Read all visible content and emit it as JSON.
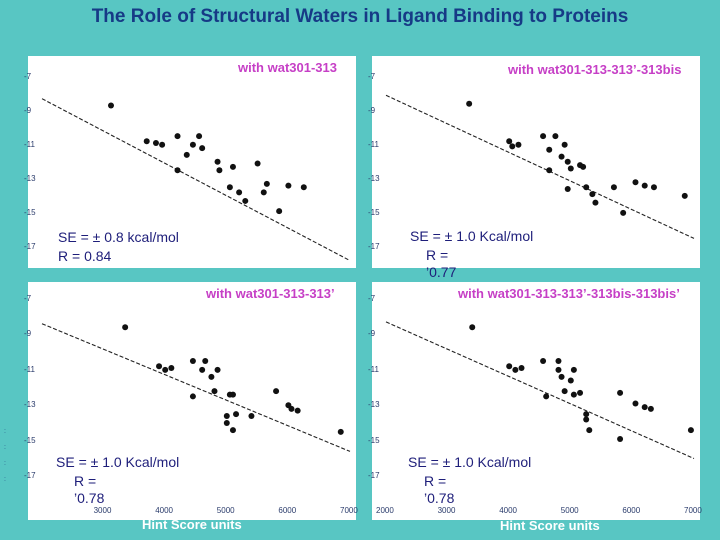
{
  "title": "The Role of Structural Waters in Ligand Binding to Proteins",
  "colors": {
    "background": "#58c6c3",
    "title": "#163a86",
    "panel_title": "#c63fc6",
    "stats": "#1e1e7a",
    "points": "#111111"
  },
  "x_axis_label": "Hint Score units",
  "side_marks": [
    ":",
    ":",
    ":",
    ":"
  ],
  "chart_data": [
    {
      "type": "scatter",
      "title": "with wat301-313",
      "se": "SE = ± 0.8 kcal/mol",
      "r": "R = 0.84",
      "xlim": [
        2000,
        7000
      ],
      "ylim": [
        -18,
        -6.5
      ],
      "yticks": [
        -7,
        -9,
        -11,
        -13,
        -15,
        -17
      ],
      "xticks": [],
      "trendline": [
        [
          2000,
          -8.3
        ],
        [
          7000,
          -17.8
        ]
      ],
      "points": [
        [
          3120,
          -8.7
        ],
        [
          3700,
          -10.8
        ],
        [
          3850,
          -10.9
        ],
        [
          3950,
          -11.0
        ],
        [
          4200,
          -10.5
        ],
        [
          4350,
          -11.6
        ],
        [
          4450,
          -11.0
        ],
        [
          4550,
          -10.5
        ],
        [
          4600,
          -11.2
        ],
        [
          4200,
          -12.5
        ],
        [
          4850,
          -12.0
        ],
        [
          4880,
          -12.5
        ],
        [
          5100,
          -12.3
        ],
        [
          5050,
          -13.5
        ],
        [
          5200,
          -13.8
        ],
        [
          5300,
          -14.3
        ],
        [
          5500,
          -12.1
        ],
        [
          5650,
          -13.3
        ],
        [
          5850,
          -14.9
        ],
        [
          5600,
          -13.8
        ],
        [
          6000,
          -13.4
        ],
        [
          6250,
          -13.5
        ]
      ]
    },
    {
      "type": "scatter",
      "title": "with wat301-313-313’-313bis",
      "se": "SE = ± 1.0 Kcal/mol",
      "r": "R =\n’0.77",
      "xlim": [
        2000,
        7000
      ],
      "ylim": [
        -18,
        -6.5
      ],
      "yticks": [
        -7,
        -9,
        -11,
        -13,
        -15,
        -17
      ],
      "xticks": [],
      "trendline": [
        [
          2000,
          -8.1
        ],
        [
          7000,
          -16.5
        ]
      ],
      "points": [
        [
          3350,
          -8.6
        ],
        [
          4000,
          -10.8
        ],
        [
          4150,
          -11.0
        ],
        [
          4050,
          -11.1
        ],
        [
          4550,
          -10.5
        ],
        [
          4650,
          -11.3
        ],
        [
          4750,
          -10.5
        ],
        [
          4900,
          -11.0
        ],
        [
          4850,
          -11.7
        ],
        [
          4650,
          -12.5
        ],
        [
          4950,
          -12.0
        ],
        [
          5000,
          -12.4
        ],
        [
          5150,
          -12.2
        ],
        [
          5250,
          -13.5
        ],
        [
          5350,
          -13.9
        ],
        [
          5400,
          -14.4
        ],
        [
          5200,
          -12.3
        ],
        [
          5700,
          -13.5
        ],
        [
          5850,
          -15.0
        ],
        [
          6050,
          -13.2
        ],
        [
          6200,
          -13.4
        ],
        [
          6350,
          -13.5
        ],
        [
          6850,
          -14.0
        ],
        [
          4950,
          -13.6
        ]
      ]
    },
    {
      "type": "scatter",
      "title": "with wat301-313-313’",
      "se": "SE = ± 1.0 Kcal/mol",
      "r": "R =\n’0.78",
      "xlim": [
        2000,
        7000
      ],
      "ylim": [
        -18,
        -6.5
      ],
      "xticks": [
        3000,
        4000,
        5000,
        6000,
        7000
      ],
      "yticks": [
        -7,
        -9,
        -11,
        -13,
        -15,
        -17
      ],
      "trendline": [
        [
          2000,
          -8.4
        ],
        [
          7000,
          -15.6
        ]
      ],
      "points": [
        [
          3350,
          -8.6
        ],
        [
          3900,
          -10.8
        ],
        [
          4000,
          -11.0
        ],
        [
          4100,
          -10.9
        ],
        [
          4450,
          -10.5
        ],
        [
          4650,
          -10.5
        ],
        [
          4600,
          -11.0
        ],
        [
          4750,
          -11.4
        ],
        [
          4850,
          -11.0
        ],
        [
          4450,
          -12.5
        ],
        [
          5050,
          -12.4
        ],
        [
          5100,
          -12.4
        ],
        [
          4800,
          -12.2
        ],
        [
          5150,
          -13.5
        ],
        [
          5400,
          -13.6
        ],
        [
          5000,
          -13.6
        ],
        [
          5100,
          -14.4
        ],
        [
          5800,
          -12.2
        ],
        [
          6000,
          -13.0
        ],
        [
          6050,
          -13.2
        ],
        [
          6150,
          -13.3
        ],
        [
          6850,
          -14.5
        ],
        [
          5000,
          -14.0
        ]
      ]
    },
    {
      "type": "scatter",
      "title": "with wat301-313-313’-313bis-313bis’",
      "se": "SE = ± 1.0 Kcal/mol",
      "r": "R =\n’0.78",
      "xlim": [
        2000,
        7000
      ],
      "ylim": [
        -18,
        -6.5
      ],
      "xticks": [
        2000,
        3000,
        4000,
        5000,
        6000,
        7000
      ],
      "yticks": [
        -7,
        -9,
        -11,
        -13,
        -15,
        -17
      ],
      "trendline": [
        [
          2000,
          -8.3
        ],
        [
          7000,
          -16.0
        ]
      ],
      "points": [
        [
          3400,
          -8.6
        ],
        [
          4000,
          -10.8
        ],
        [
          4100,
          -11.0
        ],
        [
          4200,
          -10.9
        ],
        [
          4550,
          -10.5
        ],
        [
          4800,
          -10.5
        ],
        [
          4800,
          -11.0
        ],
        [
          4850,
          -11.4
        ],
        [
          5050,
          -11.0
        ],
        [
          4600,
          -12.5
        ],
        [
          5050,
          -12.4
        ],
        [
          5150,
          -12.3
        ],
        [
          4900,
          -12.2
        ],
        [
          5250,
          -13.5
        ],
        [
          5250,
          -13.8
        ],
        [
          5300,
          -14.4
        ],
        [
          5800,
          -12.3
        ],
        [
          6050,
          -12.9
        ],
        [
          6200,
          -13.1
        ],
        [
          6300,
          -13.2
        ],
        [
          6950,
          -14.4
        ],
        [
          5800,
          -14.9
        ],
        [
          5000,
          -11.6
        ]
      ]
    }
  ]
}
